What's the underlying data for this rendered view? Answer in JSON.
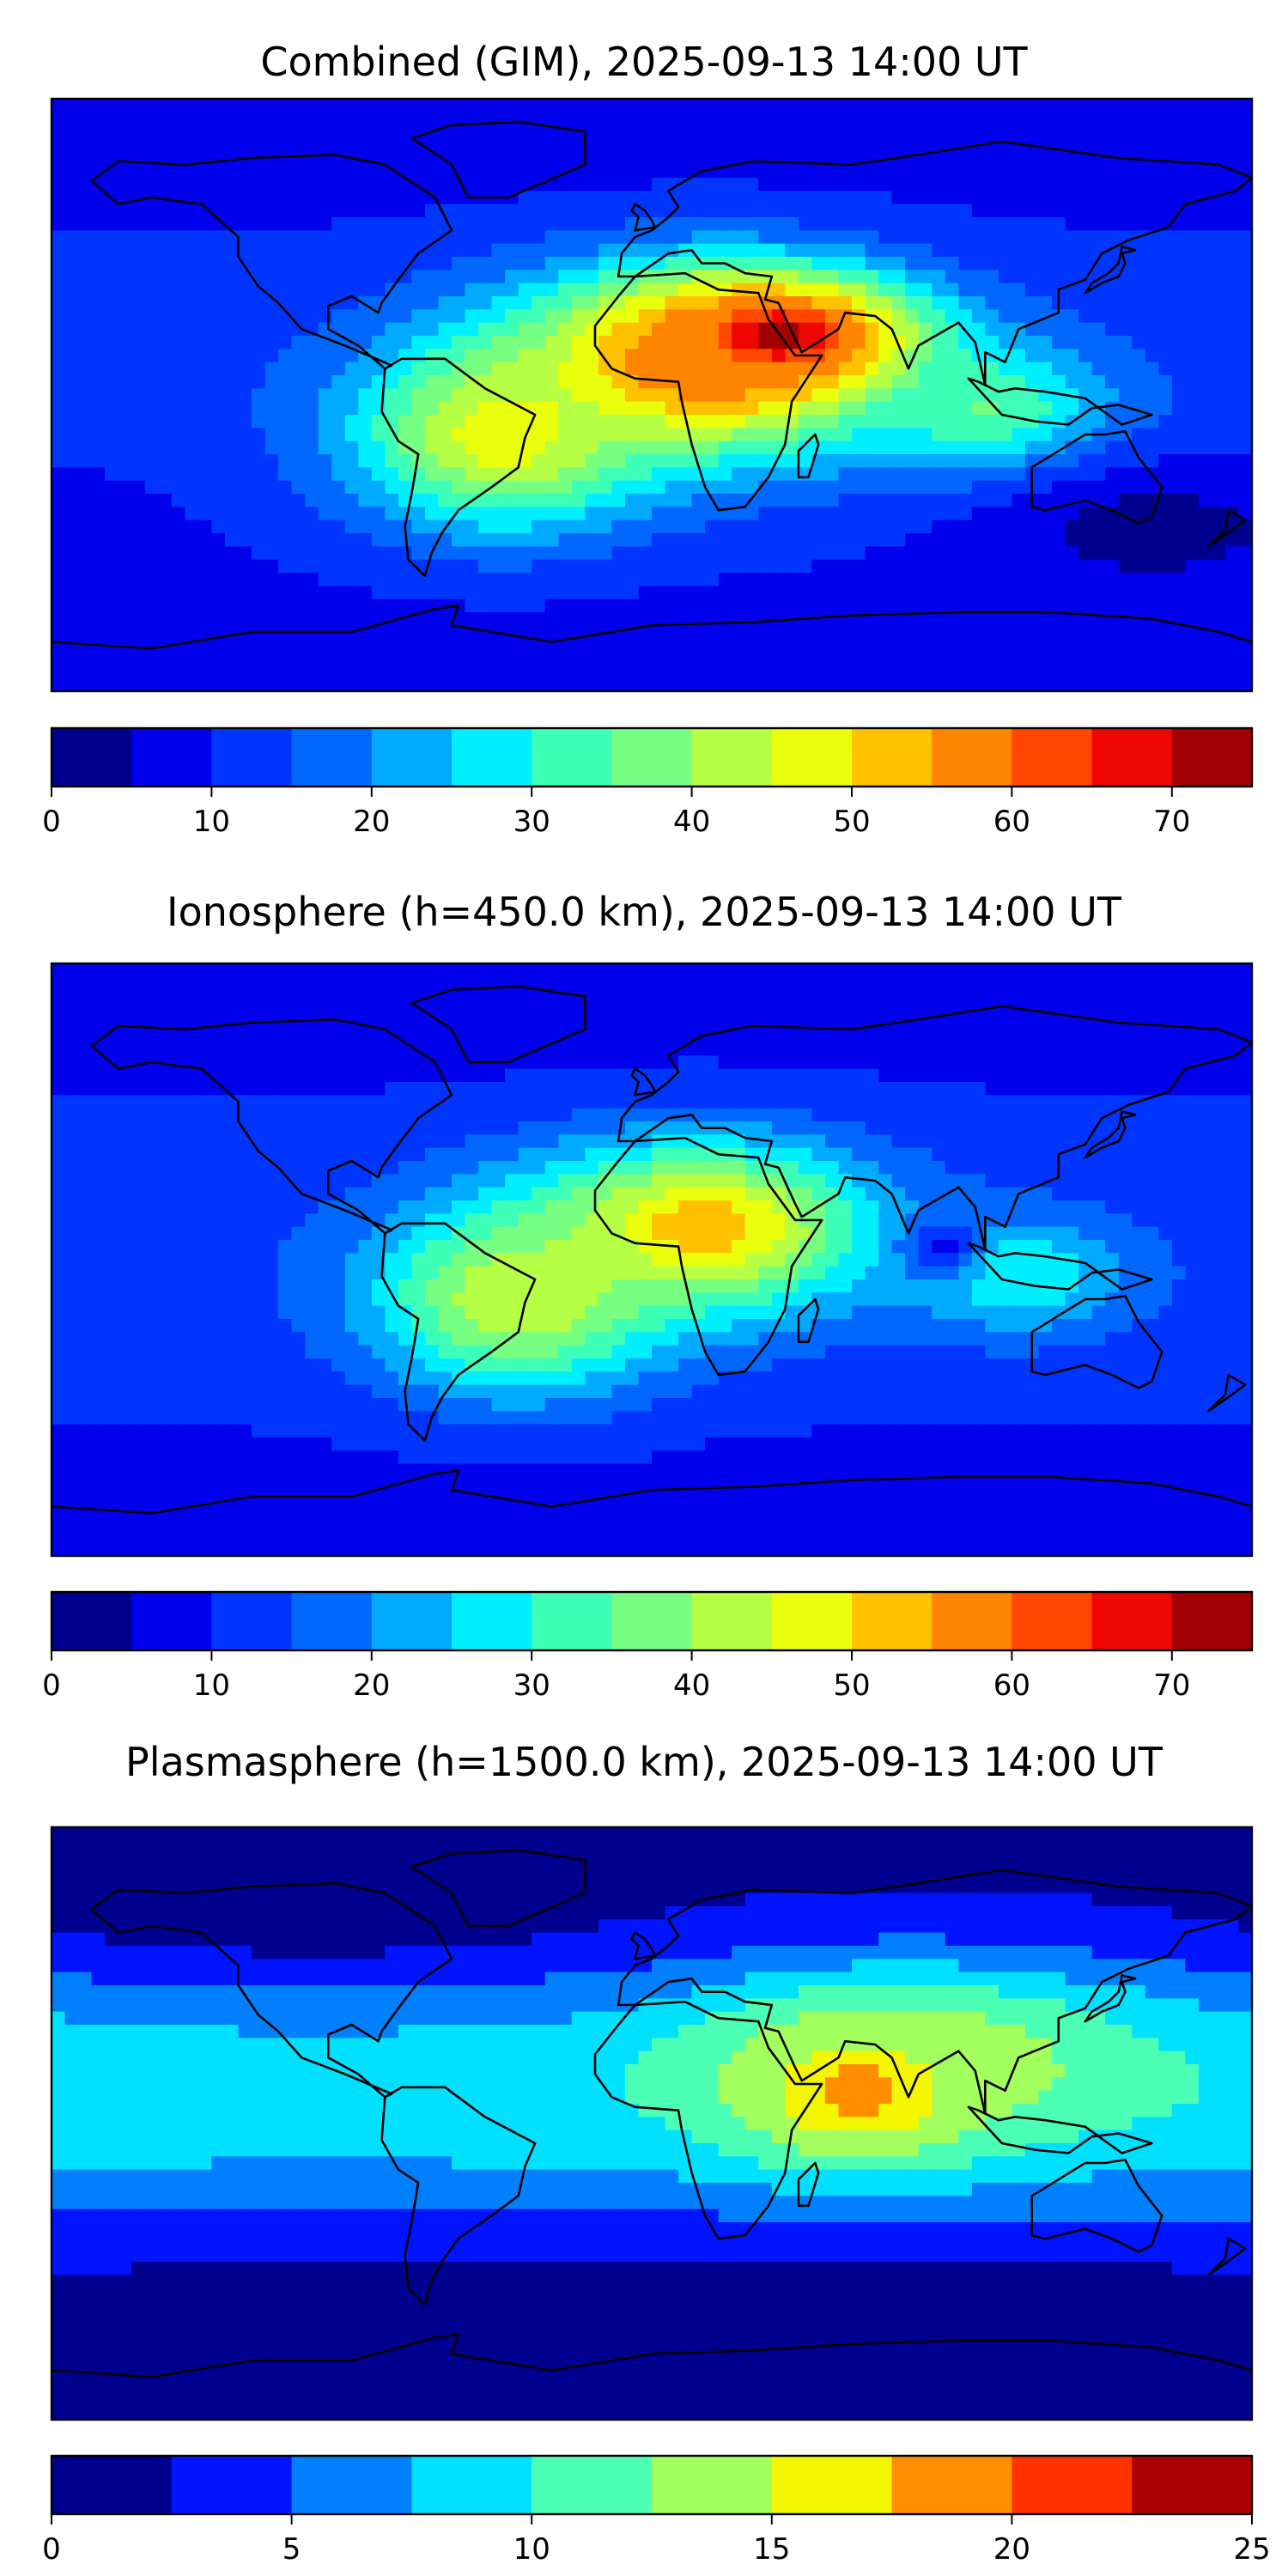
{
  "chart_data": [
    {
      "type": "heatmap",
      "title": "Combined (GIM), 2025-09-13 14:00 UT",
      "xlabel": "",
      "ylabel": "",
      "colorbar": {
        "range": [
          0,
          75
        ],
        "levels": [
          0,
          5,
          10,
          15,
          20,
          25,
          30,
          35,
          40,
          45,
          50,
          55,
          60,
          65,
          70,
          75
        ],
        "ticks": [
          0,
          10,
          20,
          30,
          40,
          50,
          60,
          70
        ],
        "colors": [
          "#00008f",
          "#0000ed",
          "#0035ff",
          "#0068ff",
          "#00aaff",
          "#00efff",
          "#3dffb7",
          "#77ff82",
          "#b5ff44",
          "#eaff0c",
          "#ffc200",
          "#ff8400",
          "#ff4700",
          "#ef0600",
          "#a20000"
        ]
      },
      "features": [
        {
          "type": "peak",
          "lon": 38,
          "lat": 18,
          "value": 72,
          "slon": 28,
          "slat": 12
        },
        {
          "type": "enhancement",
          "lon": 15,
          "lat": 10,
          "value": 60,
          "slon": 40,
          "slat": 20
        },
        {
          "type": "enhancement",
          "lon": -45,
          "lat": -12,
          "value": 48,
          "slon": 30,
          "slat": 20
        },
        {
          "type": "enhancement",
          "lon": 100,
          "lat": -5,
          "value": 36,
          "slon": 25,
          "slat": 14
        },
        {
          "type": "trough",
          "lon": 150,
          "lat": -40,
          "value": 4,
          "slon": 40,
          "slat": 15
        }
      ]
    },
    {
      "type": "heatmap",
      "title": "Ionosphere  (h=450.0 km), 2025-09-13 14:00 UT",
      "xlabel": "",
      "ylabel": "",
      "colorbar": {
        "range": [
          0,
          75
        ],
        "levels": [
          0,
          5,
          10,
          15,
          20,
          25,
          30,
          35,
          40,
          45,
          50,
          55,
          60,
          65,
          70,
          75
        ],
        "ticks": [
          0,
          10,
          20,
          30,
          40,
          50,
          60,
          70
        ],
        "colors": [
          "#00008f",
          "#0000ed",
          "#0035ff",
          "#0068ff",
          "#00aaff",
          "#00efff",
          "#3dffb7",
          "#77ff82",
          "#b5ff44",
          "#eaff0c",
          "#ffc200",
          "#ff8400",
          "#ff4700",
          "#ef0600",
          "#a20000"
        ]
      },
      "features": [
        {
          "type": "peak",
          "lon": 15,
          "lat": 10,
          "value": 53,
          "slon": 35,
          "slat": 18
        },
        {
          "type": "enhancement",
          "lon": -40,
          "lat": -12,
          "value": 45,
          "slon": 30,
          "slat": 20
        },
        {
          "type": "enhancement",
          "lon": 110,
          "lat": -5,
          "value": 30,
          "slon": 22,
          "slat": 12
        },
        {
          "type": "trough",
          "lon": 87,
          "lat": 4,
          "value": 14,
          "slon": 8,
          "slat": 6
        }
      ]
    },
    {
      "type": "heatmap",
      "title": "Plasmasphere (h=1500.0 km), 2025-09-13 14:00 UT",
      "xlabel": "",
      "ylabel": "",
      "colorbar": {
        "range": [
          0,
          25
        ],
        "levels": [
          0,
          2.5,
          5,
          7.5,
          10,
          12.5,
          15,
          17.5,
          20,
          22.5,
          25
        ],
        "ticks": [
          0,
          5,
          10,
          15,
          20,
          25
        ],
        "colors": [
          "#00008f",
          "#0014ff",
          "#0080ff",
          "#00e1ff",
          "#4bffb4",
          "#a2ff5d",
          "#f4f500",
          "#ff8d00",
          "#ff3200",
          "#ad0000"
        ]
      },
      "features": [
        {
          "type": "peak",
          "lon": 62,
          "lat": 10,
          "value": 18.5,
          "slon": 25,
          "slat": 15
        },
        {
          "type": "enhancement",
          "lon": 80,
          "lat": 20,
          "value": 14,
          "slon": 50,
          "slat": 18
        },
        {
          "type": "trough",
          "lon": -100,
          "lat": 65,
          "value": 1,
          "slon": 60,
          "slat": 12
        },
        {
          "type": "trough",
          "lon": 0,
          "lat": -60,
          "value": 2,
          "slon": 150,
          "slat": 15
        }
      ]
    }
  ]
}
